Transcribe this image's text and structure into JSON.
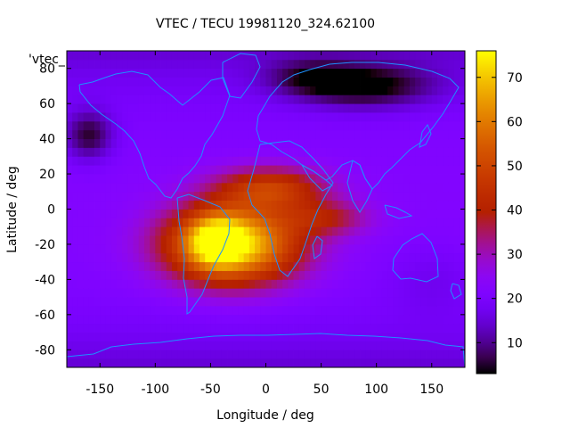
{
  "chart_data": {
    "type": "heatmap",
    "title": "VTEC / TECU 19981120_324.62100",
    "xlabel": "Longitude / deg",
    "ylabel": "Latitude / deg",
    "legend_label": "'vtec_",
    "xlim": [
      -180,
      180
    ],
    "ylim": [
      -90,
      90
    ],
    "x_ticks": [
      -150,
      -100,
      -50,
      0,
      50,
      100,
      150
    ],
    "y_ticks": [
      -80,
      -60,
      -40,
      -20,
      0,
      20,
      40,
      60,
      80
    ],
    "colorbar": {
      "range": [
        3,
        76
      ],
      "ticks": [
        10,
        20,
        30,
        40,
        50,
        60,
        70
      ]
    },
    "field": {
      "background_value": 22,
      "features": [
        {
          "lon": -30,
          "lat": -20,
          "peak": 52,
          "sigma_lon": 60,
          "sigma_lat": 22
        },
        {
          "lon": -45,
          "lat": -18,
          "peak": 24,
          "sigma_lon": 24,
          "sigma_lat": 14
        },
        {
          "lon": 5,
          "lat": 12,
          "peak": 24,
          "sigma_lon": 50,
          "sigma_lat": 12
        },
        {
          "lon": 55,
          "lat": -5,
          "peak": 14,
          "sigma_lon": 40,
          "sigma_lat": 10
        },
        {
          "lon": 90,
          "lat": 70,
          "peak": -18,
          "sigma_lon": 60,
          "sigma_lat": 12
        },
        {
          "lon": -160,
          "lat": 42,
          "peak": -16,
          "sigma_lon": 22,
          "sigma_lat": 14
        },
        {
          "lon": 40,
          "lat": 75,
          "peak": -10,
          "sigma_lon": 40,
          "sigma_lat": 10
        },
        {
          "lon": 150,
          "lat": -40,
          "peak": -4,
          "sigma_lon": 40,
          "sigma_lat": 20
        }
      ]
    }
  },
  "colors": {
    "coastline": "#1e90ff",
    "colormap_low": "#000000",
    "colormap_high": "#ffff00"
  }
}
